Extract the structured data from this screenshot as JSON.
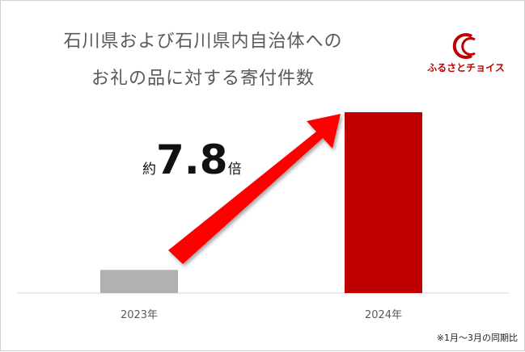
{
  "title_line1": "石川県および石川県内自治体への",
  "title_line2": "お礼の品に対する寄付件数",
  "logo_text": "ふるさとチョイス",
  "annotation": {
    "prefix": "約",
    "value": "7.8",
    "suffix": "倍"
  },
  "footnote": "※1月～3月の同期比",
  "colors": {
    "bar_2023": "#b3b0b0",
    "bar_2024": "#c00000",
    "arrow": "#ff0000",
    "brand": "#c00000",
    "title": "#595959"
  },
  "chart_data": {
    "type": "bar",
    "categories": [
      "2023年",
      "2024年"
    ],
    "values": [
      1,
      7.8
    ],
    "value_unit": "relative (2023 = 1)",
    "grid": false,
    "legend": "none"
  }
}
